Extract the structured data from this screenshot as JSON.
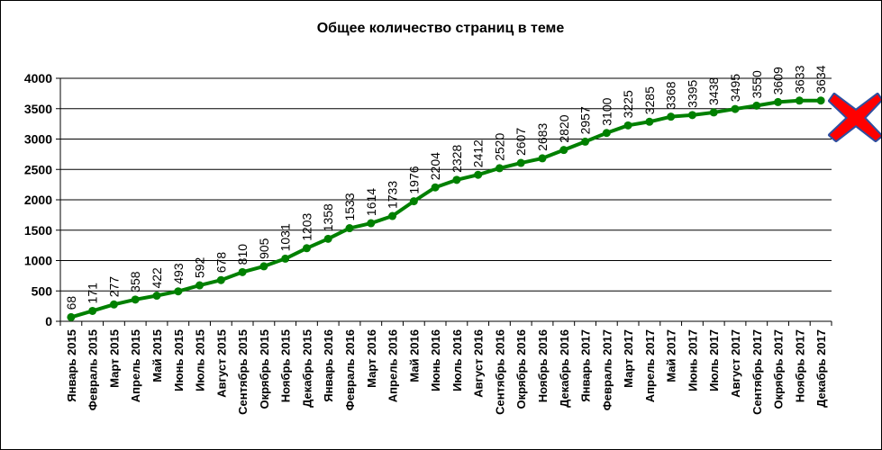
{
  "chart_data": {
    "type": "line",
    "title": "Общее количество страниц в теме",
    "xlabel": "",
    "ylabel": "",
    "ylim": [
      0,
      4000
    ],
    "yticks": [
      "0",
      "500",
      "1000",
      "1500",
      "2000",
      "2500",
      "3000",
      "3500",
      "4000"
    ],
    "grid": true,
    "categories": [
      "Январь 2015",
      "Февраль 2015",
      "Март 2015",
      "Апрель 2015",
      "Май 2015",
      "Июнь 2015",
      "Июль 2015",
      "Август 2015",
      "Сентябрь 2015",
      "Окрябрь 2015",
      "Ноябрь 2015",
      "Декабрь 2015",
      "Январь 2016",
      "Февраль 2016",
      "Март 2016",
      "Апрель 2016",
      "Май 2016",
      "Июнь 2016",
      "Июль 2016",
      "Август 2016",
      "Сентябрь 2016",
      "Окрябрь 2016",
      "Ноябрь 2016",
      "Декабрь 2016",
      "Январь 2017",
      "Февраль 2017",
      "Март 2017",
      "Апрель 2017",
      "Май 2017",
      "Июнь 2017",
      "Июль 2017",
      "Август 2017",
      "Сентябрь 2017",
      "Окрябрь 2017",
      "Ноябрь 2017",
      "Декабрь 2017"
    ],
    "values": [
      68,
      171,
      277,
      358,
      422,
      493,
      592,
      678,
      810,
      905,
      1031,
      1203,
      1358,
      1533,
      1614,
      1733,
      1976,
      2204,
      2328,
      2412,
      2520,
      2607,
      2683,
      2820,
      2957,
      3100,
      3225,
      3285,
      3368,
      3395,
      3438,
      3495,
      3550,
      3609,
      3633,
      3634
    ],
    "data_labels": [
      "68",
      "171",
      "277",
      "358",
      "422",
      "493",
      "592",
      "678",
      "810",
      "905",
      "1031",
      "1203",
      "1358",
      "1533",
      "1614",
      "1733",
      "1976",
      "2204",
      "2328",
      "2412",
      "2520",
      "2607",
      "2683",
      "2820",
      "2957",
      "3100",
      "3225",
      "3285",
      "3368",
      "3395",
      "3438",
      "3495",
      "3550",
      "3609",
      "3633",
      "3634"
    ],
    "series_color": "#008000",
    "marker_color": "#008000",
    "grid_color": "#000000",
    "legend": "none"
  },
  "overlay": {
    "icon": "x-mark-icon",
    "fill_color": "#ff0000",
    "outline_color": "#2e4fa0"
  }
}
